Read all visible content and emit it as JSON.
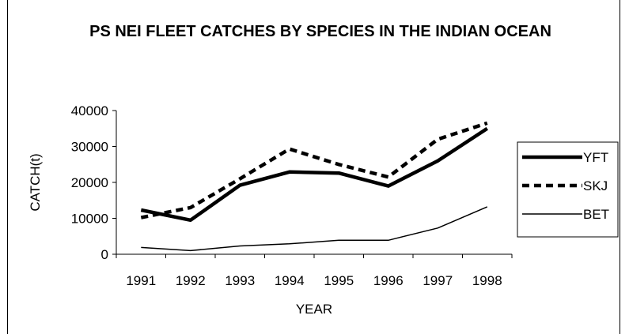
{
  "chart_data": {
    "type": "line",
    "title": "PS NEI FLEET CATCHES BY SPECIES IN THE INDIAN OCEAN",
    "xlabel": "YEAR",
    "ylabel": "CATCH(t)",
    "categories": [
      "1991",
      "1992",
      "1993",
      "1994",
      "1995",
      "1996",
      "1997",
      "1998"
    ],
    "yticks": [
      "0",
      "10000",
      "20000",
      "30000",
      "40000"
    ],
    "ylim": [
      0,
      40000
    ],
    "grid": false,
    "legend_position": "right",
    "series": [
      {
        "name": "YFT",
        "values": [
          12300,
          9500,
          19200,
          22900,
          22600,
          19000,
          26000,
          35000
        ],
        "style": "solid-thick",
        "color": "#000000"
      },
      {
        "name": "SKJ",
        "values": [
          10200,
          13000,
          21000,
          29300,
          25000,
          21500,
          32000,
          36500
        ],
        "style": "dashed-thick",
        "color": "#000000"
      },
      {
        "name": "BET",
        "values": [
          1900,
          1000,
          2300,
          2900,
          3900,
          3900,
          7300,
          13200
        ],
        "style": "solid-thin",
        "color": "#000000"
      }
    ]
  }
}
